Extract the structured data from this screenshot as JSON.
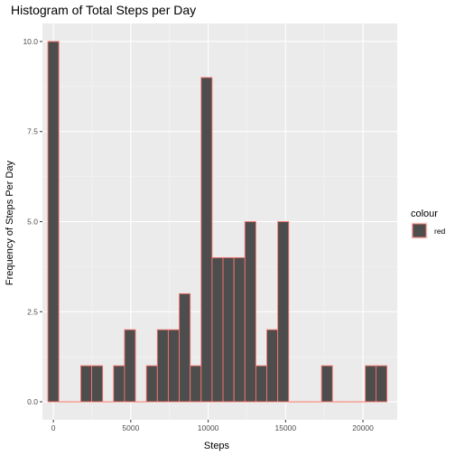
{
  "chart_data": {
    "type": "bar",
    "title": "Histogram of Total Steps per Day",
    "xlabel": "Steps",
    "ylabel": "Frequency of Steps Per Day",
    "xlim": [
      -707,
      22212
    ],
    "ylim": [
      -0.5,
      10.5
    ],
    "x_ticks": [
      0,
      5000,
      10000,
      15000,
      20000
    ],
    "x_tick_labels": [
      "0",
      "5000",
      "10000",
      "15000",
      "20000"
    ],
    "y_ticks": [
      0,
      2.5,
      5,
      7.5,
      10
    ],
    "y_tick_labels": [
      "0.0",
      "2.5",
      "5.0",
      "7.5",
      "10.0"
    ],
    "bin_width": 707,
    "bin_centers": [
      0,
      707,
      1414,
      2121,
      2828,
      3535,
      4242,
      4949,
      5656,
      6363,
      7070,
      7777,
      8484,
      9191,
      9898,
      10605,
      11312,
      12019,
      12726,
      13433,
      14140,
      14847,
      15554,
      16261,
      16968,
      17675,
      18382,
      19089,
      19796,
      20503,
      21194
    ],
    "values": [
      10,
      0,
      0,
      1,
      1,
      0,
      1,
      2,
      0,
      1,
      2,
      2,
      3,
      1,
      9,
      4,
      4,
      4,
      5,
      1,
      2,
      5,
      0,
      0,
      0,
      1,
      0,
      0,
      0,
      1,
      1
    ],
    "bar_fill": "#4d4d4d",
    "bar_outline": "#f8766d",
    "panel_background": "#ebebeb",
    "grid": true,
    "legend": {
      "title": "colour",
      "entries": [
        {
          "label": "red",
          "color": "#f8766d"
        }
      ],
      "placement": "right"
    }
  }
}
